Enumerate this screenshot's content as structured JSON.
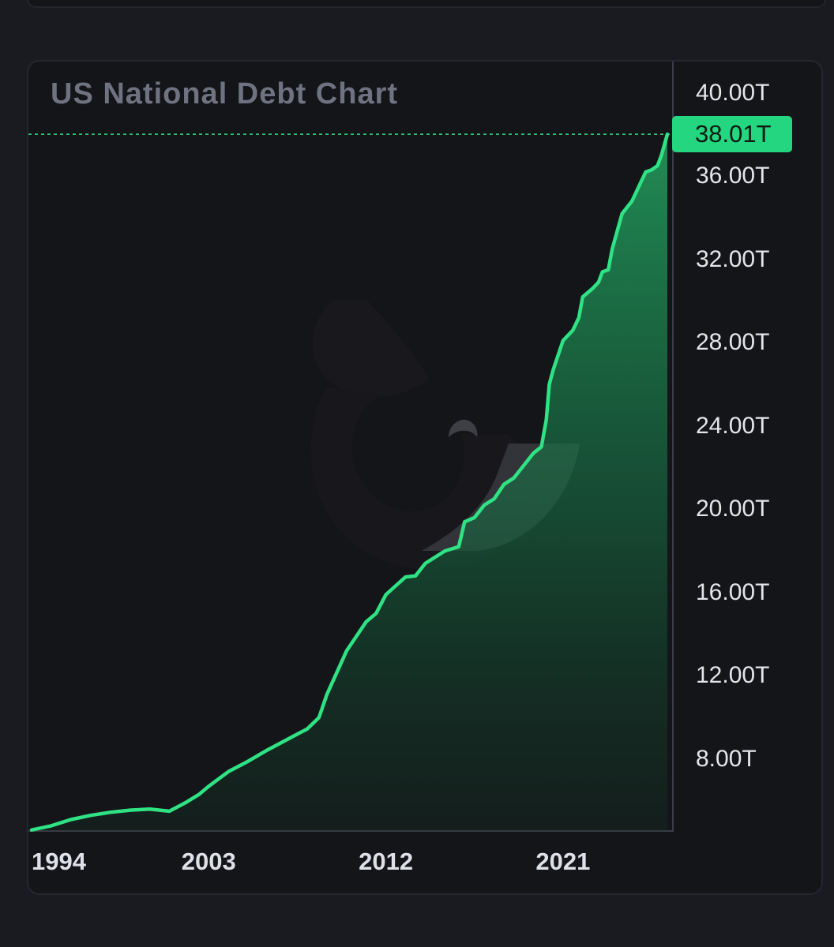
{
  "chart_data": {
    "type": "area",
    "title": "US National Debt Chart",
    "y_ticks": [
      "40.00T",
      "36.00T",
      "32.00T",
      "28.00T",
      "24.00T",
      "20.00T",
      "16.00T",
      "12.00T",
      "8.00T"
    ],
    "y_tick_values": [
      40,
      36,
      32,
      28,
      24,
      20,
      16,
      12,
      8
    ],
    "x_ticks": [
      "1994",
      "2003",
      "2012",
      "2021"
    ],
    "x_tick_values": [
      1994,
      2003,
      2012,
      2021
    ],
    "xlim": [
      1994,
      2026.5
    ],
    "ylim": [
      4.55,
      41.5
    ],
    "grid": false,
    "current_value": 38.01,
    "current_label": "38.01T",
    "series": [
      {
        "x": [
          1994.0,
          1995.0,
          1996.0,
          1997.0,
          1998.0,
          1999.0,
          2000.0,
          2001.0,
          2001.8,
          2002.5,
          2003.0,
          2004.0,
          2005.0,
          2006.0,
          2007.0,
          2008.0,
          2008.6,
          2009.0,
          2010.0,
          2011.0,
          2011.5,
          2012.0,
          2013.0,
          2013.5,
          2014.0,
          2015.0,
          2015.7,
          2016.0,
          2016.5,
          2017.0,
          2017.5,
          2018.0,
          2018.5,
          2019.0,
          2019.5,
          2019.9,
          2020.15,
          2020.3,
          2020.5,
          2021.0,
          2021.5,
          2021.8,
          2022.0,
          2022.5,
          2022.8,
          2023.0,
          2023.3,
          2023.5,
          2024.0,
          2024.5,
          2025.0,
          2025.2,
          2025.5,
          2025.8,
          2026.0,
          2026.3
        ],
        "values": [
          4.6,
          4.8,
          5.1,
          5.3,
          5.45,
          5.55,
          5.6,
          5.5,
          5.9,
          6.3,
          6.7,
          7.4,
          7.9,
          8.45,
          8.95,
          9.45,
          10.0,
          11.1,
          13.2,
          14.6,
          15.0,
          15.9,
          16.75,
          16.8,
          17.4,
          18.0,
          18.2,
          19.4,
          19.6,
          20.2,
          20.5,
          21.2,
          21.5,
          22.1,
          22.7,
          23.0,
          24.3,
          26.0,
          26.7,
          28.1,
          28.6,
          29.2,
          30.2,
          30.6,
          30.9,
          31.4,
          31.5,
          32.5,
          34.2,
          34.8,
          35.8,
          36.2,
          36.3,
          36.5,
          37.0,
          38.01
        ]
      }
    ],
    "line_color": "#2fe384",
    "badge_color": "#25d680"
  }
}
